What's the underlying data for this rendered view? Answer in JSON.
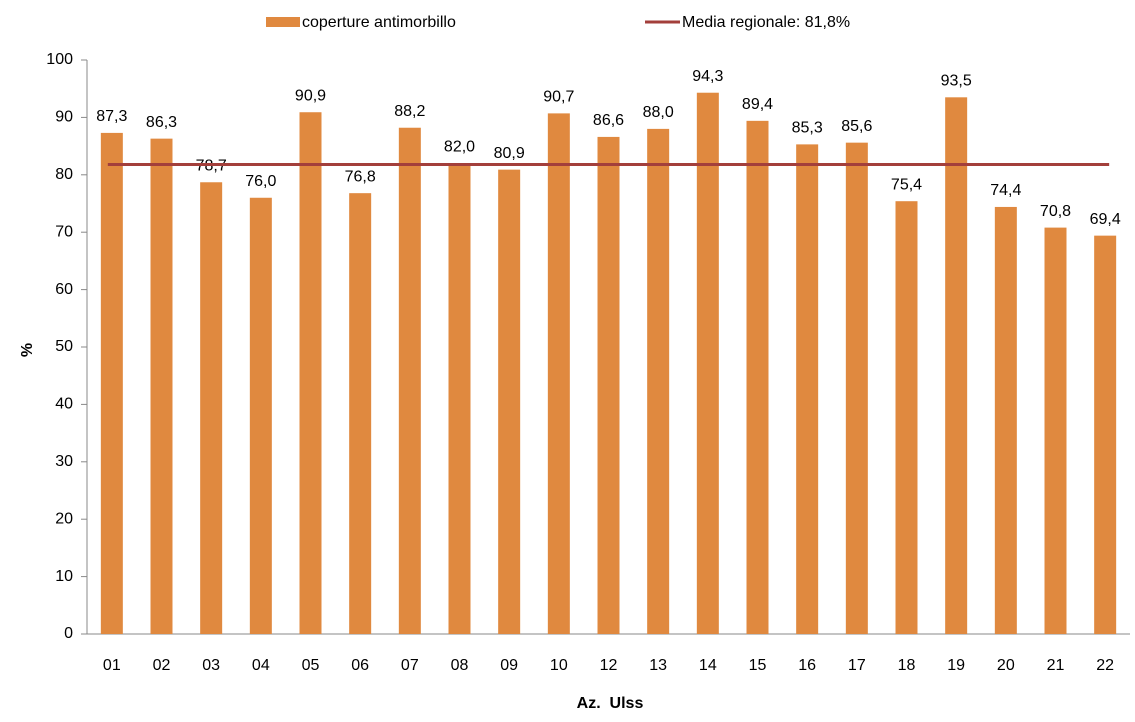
{
  "chart_data": {
    "type": "bar",
    "x_label": "Az.  Ulss",
    "y_label": "%",
    "categories": [
      "01",
      "02",
      "03",
      "04",
      "05",
      "06",
      "07",
      "08",
      "09",
      "10",
      "12",
      "13",
      "14",
      "15",
      "16",
      "17",
      "18",
      "19",
      "20",
      "21",
      "22"
    ],
    "series": [
      {
        "name": "coperture antimorbillo",
        "color": "#e0893f",
        "values": [
          87.3,
          86.3,
          78.7,
          76.0,
          90.9,
          76.8,
          88.2,
          82.0,
          80.9,
          90.7,
          86.6,
          88.0,
          94.3,
          89.4,
          85.3,
          85.6,
          75.4,
          93.5,
          74.4,
          70.8,
          69.4
        ],
        "value_labels": [
          "87,3",
          "86,3",
          "78,7",
          "76,0",
          "90,9",
          "76,8",
          "88,2",
          "82,0",
          "80,9",
          "90,7",
          "86,6",
          "88,0",
          "94,3",
          "89,4",
          "85,3",
          "85,6",
          "75,4",
          "93,5",
          "74,4",
          "70,8",
          "69,4"
        ]
      }
    ],
    "reference_line": {
      "name": "Media regionale: 81,8%",
      "value": 81.8,
      "color": "#a33f3b"
    },
    "ylim": [
      0,
      100
    ],
    "yticks": [
      0,
      10,
      20,
      30,
      40,
      50,
      60,
      70,
      80,
      90,
      100
    ],
    "grid": false
  }
}
